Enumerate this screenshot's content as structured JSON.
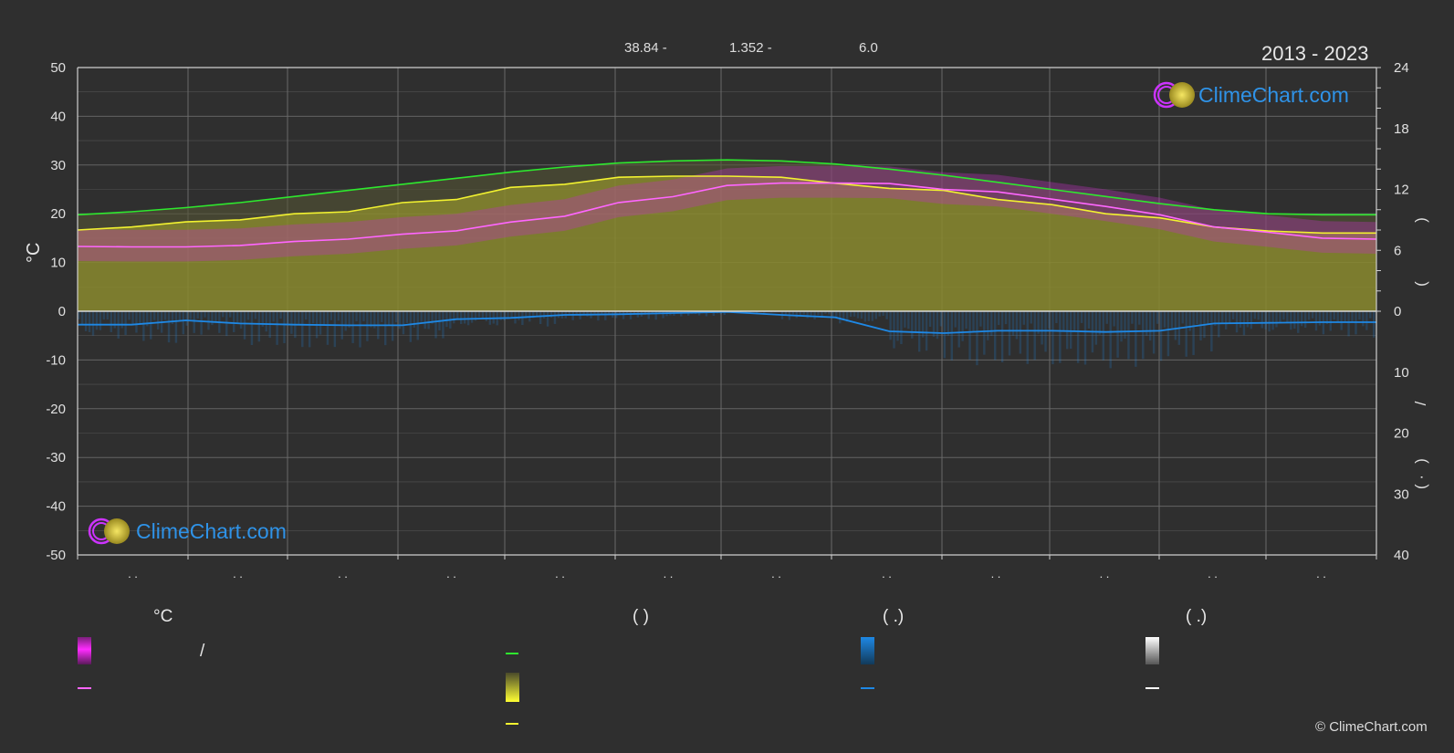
{
  "header": {
    "period": "2013 - 2023",
    "stats": [
      "38.84 -",
      "1.352 -",
      "6.0"
    ]
  },
  "branding": {
    "logo_text": "ClimeChart.com",
    "copyright": "© ClimeChart.com"
  },
  "colors": {
    "background": "#2f2f2f",
    "daylight": "#2ee82e",
    "sunshine": "#f2f230",
    "temperature": "#ff66ff",
    "precipitation": "#1e88e5",
    "snow": "#ffffff",
    "sunshine_fill": "#8a8a2e",
    "temp_band": "#c030c0",
    "grid": "#6a6a6a"
  },
  "chart_data": {
    "type": "line",
    "x_tick_labels": [
      ". .",
      ". .",
      ". .",
      ". .",
      ". .",
      ". .",
      ". .",
      ". .",
      ". .",
      ". .",
      ". .",
      ". ."
    ],
    "ylabel_left": "°C",
    "ylim_left": [
      -50,
      50
    ],
    "yticks_left": [
      50,
      40,
      30,
      20,
      10,
      0,
      -10,
      -20,
      -30,
      -40,
      -50
    ],
    "ylim_right_upper": [
      0,
      24
    ],
    "yticks_right_upper": [
      24,
      18,
      12,
      6,
      0
    ],
    "ylim_right_lower": [
      0,
      40
    ],
    "yticks_right_lower": [
      0,
      10,
      20,
      30,
      40
    ],
    "right_axis_marks": [
      ")",
      "(",
      "/",
      ")",
      "( ·"
    ],
    "grid": true,
    "series": [
      {
        "key": "daylight",
        "axis": "hours",
        "x": [
          0,
          0.5,
          1,
          1.5,
          2,
          2.5,
          3,
          3.5,
          4,
          4.5,
          5,
          5.5,
          6,
          6.5,
          7,
          7.5,
          8,
          8.5,
          9,
          9.5,
          10,
          10.5,
          11,
          11.5,
          12
        ],
        "values": [
          9.5,
          9.8,
          10.2,
          10.7,
          11.3,
          11.9,
          12.5,
          13.1,
          13.7,
          14.2,
          14.6,
          14.8,
          14.9,
          14.8,
          14.5,
          14.0,
          13.4,
          12.7,
          12.0,
          11.3,
          10.6,
          10.0,
          9.6,
          9.5,
          9.5
        ]
      },
      {
        "key": "sunshine",
        "axis": "hours",
        "x": [
          0,
          0.5,
          1,
          1.5,
          2,
          2.5,
          3,
          3.5,
          4,
          4.5,
          5,
          5.5,
          6,
          6.5,
          7,
          7.5,
          8,
          8.5,
          9,
          9.5,
          10,
          10.5,
          11,
          11.5,
          12
        ],
        "values": [
          8.0,
          8.3,
          8.8,
          9.0,
          9.6,
          9.8,
          10.7,
          11.0,
          12.2,
          12.5,
          13.2,
          13.3,
          13.3,
          13.2,
          12.6,
          12.1,
          11.9,
          11.0,
          10.5,
          9.6,
          9.2,
          8.3,
          7.9,
          7.7,
          7.7
        ]
      },
      {
        "key": "temperature",
        "axis": "celsius",
        "x": [
          0,
          0.5,
          1,
          1.5,
          2,
          2.5,
          3,
          3.5,
          4,
          4.5,
          5,
          5.5,
          6,
          6.5,
          7,
          7.5,
          8,
          8.5,
          9,
          9.5,
          10,
          10.5,
          11,
          11.5,
          12
        ],
        "values": [
          13.3,
          13.2,
          13.2,
          13.5,
          14.3,
          14.8,
          15.8,
          16.5,
          18.3,
          19.5,
          22.3,
          23.5,
          25.8,
          26.3,
          26.3,
          26.2,
          25.0,
          24.5,
          23.0,
          21.5,
          19.8,
          17.3,
          16.2,
          15.0,
          14.8
        ]
      },
      {
        "key": "precipitation",
        "axis": "mm",
        "x": [
          0,
          0.5,
          1,
          1.5,
          2,
          2.5,
          3,
          3.5,
          4,
          4.5,
          5,
          5.5,
          6,
          6.5,
          7,
          7.5,
          8,
          8.5,
          9,
          9.5,
          10,
          10.5,
          11,
          11.5,
          12
        ],
        "values": [
          2.2,
          2.2,
          1.5,
          2.0,
          2.2,
          2.3,
          2.3,
          1.3,
          1.1,
          0.6,
          0.5,
          0.3,
          0.1,
          0.6,
          1.0,
          3.3,
          3.6,
          3.2,
          3.2,
          3.4,
          3.2,
          2.0,
          1.9,
          1.8,
          1.8
        ]
      }
    ]
  },
  "legend": {
    "col1": {
      "heading": "°C",
      "items": [
        "/"
      ]
    },
    "col2": {
      "heading": "(          )",
      "items": []
    },
    "col3": {
      "heading": "(   .)",
      "items": []
    },
    "col4": {
      "heading": "(   .)",
      "items": []
    }
  }
}
